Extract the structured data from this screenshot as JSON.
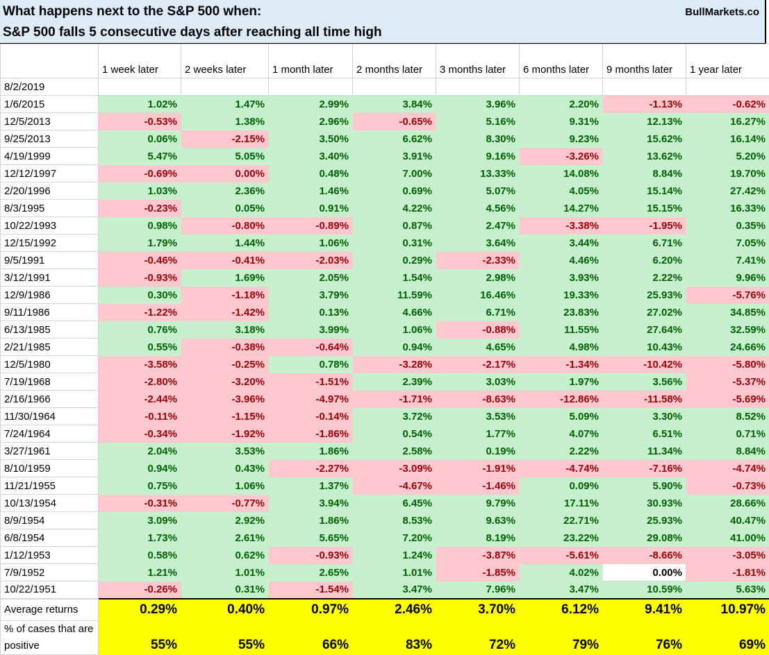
{
  "title_line1": "What happens next to the S&P 500 when:",
  "title_line2": "S&P 500 falls 5 consecutive days after reaching all time high",
  "brand": "BullMarkets.co",
  "columns": [
    "1 week later",
    "2 weeks later",
    "1 month later",
    "2 months later",
    "3 months later",
    "6 months later",
    "9 months later",
    "1 year later"
  ],
  "current_date": "8/2/2019",
  "rows": [
    {
      "date": "1/6/2015",
      "values": [
        "1.02%",
        "1.47%",
        "2.99%",
        "3.84%",
        "3.96%",
        "2.20%",
        "-1.13%",
        "-0.62%"
      ]
    },
    {
      "date": "12/5/2013",
      "values": [
        "-0.53%",
        "1.38%",
        "2.96%",
        "-0.65%",
        "5.16%",
        "9.31%",
        "12.13%",
        "16.27%"
      ]
    },
    {
      "date": "9/25/2013",
      "values": [
        "0.06%",
        "-2.15%",
        "3.50%",
        "6.62%",
        "8.30%",
        "9.23%",
        "15.62%",
        "16.14%"
      ]
    },
    {
      "date": "4/19/1999",
      "values": [
        "5.47%",
        "5.05%",
        "3.40%",
        "3.91%",
        "9.16%",
        "-3.26%",
        "13.62%",
        "5.20%"
      ]
    },
    {
      "date": "12/12/1997",
      "values": [
        "-0.69%",
        "0.00%",
        "0.48%",
        "7.00%",
        "13.33%",
        "14.08%",
        "8.84%",
        "19.70%"
      ]
    },
    {
      "date": "2/20/1996",
      "values": [
        "1.03%",
        "2.36%",
        "1.46%",
        "0.69%",
        "5.07%",
        "4.05%",
        "15.14%",
        "27.42%"
      ]
    },
    {
      "date": "8/3/1995",
      "values": [
        "-0.23%",
        "0.05%",
        "0.91%",
        "4.22%",
        "4.56%",
        "14.27%",
        "15.15%",
        "16.33%"
      ]
    },
    {
      "date": "10/22/1993",
      "values": [
        "0.98%",
        "-0.80%",
        "-0.89%",
        "0.87%",
        "2.47%",
        "-3.38%",
        "-1.95%",
        "0.35%"
      ]
    },
    {
      "date": "12/15/1992",
      "values": [
        "1.79%",
        "1.44%",
        "1.06%",
        "0.31%",
        "3.64%",
        "3.44%",
        "6.71%",
        "7.05%"
      ]
    },
    {
      "date": "9/5/1991",
      "values": [
        "-0.46%",
        "-0.41%",
        "-2.03%",
        "0.29%",
        "-2.33%",
        "4.46%",
        "6.20%",
        "7.41%"
      ]
    },
    {
      "date": "3/12/1991",
      "values": [
        "-0.93%",
        "1.69%",
        "2.05%",
        "1.54%",
        "2.98%",
        "3.93%",
        "2.22%",
        "9.96%"
      ]
    },
    {
      "date": "12/9/1986",
      "values": [
        "0.30%",
        "-1.18%",
        "3.79%",
        "11.59%",
        "16.46%",
        "19.33%",
        "25.93%",
        "-5.76%"
      ]
    },
    {
      "date": "9/11/1986",
      "values": [
        "-1.22%",
        "-1.42%",
        "0.13%",
        "4.66%",
        "6.71%",
        "23.83%",
        "27.02%",
        "34.85%"
      ]
    },
    {
      "date": "6/13/1985",
      "values": [
        "0.76%",
        "3.18%",
        "3.99%",
        "1.06%",
        "-0.88%",
        "11.55%",
        "27.64%",
        "32.59%"
      ]
    },
    {
      "date": "2/21/1985",
      "values": [
        "0.55%",
        "-0.38%",
        "-0.64%",
        "0.94%",
        "4.65%",
        "4.98%",
        "10.43%",
        "24.66%"
      ]
    },
    {
      "date": "12/5/1980",
      "values": [
        "-3.58%",
        "-0.25%",
        "0.78%",
        "-3.28%",
        "-2.17%",
        "-1.34%",
        "-10.42%",
        "-5.80%"
      ]
    },
    {
      "date": "7/19/1968",
      "values": [
        "-2.80%",
        "-3.20%",
        "-1.51%",
        "2.39%",
        "3.03%",
        "1.97%",
        "3.56%",
        "-5.37%"
      ]
    },
    {
      "date": "2/16/1966",
      "values": [
        "-2.44%",
        "-3.96%",
        "-4.97%",
        "-1.71%",
        "-8.63%",
        "-12.86%",
        "-11.58%",
        "-5.69%"
      ]
    },
    {
      "date": "11/30/1964",
      "values": [
        "-0.11%",
        "-1.15%",
        "-0.14%",
        "3.72%",
        "3.53%",
        "5.09%",
        "3.30%",
        "8.52%"
      ]
    },
    {
      "date": "7/24/1964",
      "values": [
        "-0.34%",
        "-1.92%",
        "-1.86%",
        "0.54%",
        "1.77%",
        "4.07%",
        "6.51%",
        "0.71%"
      ]
    },
    {
      "date": "3/27/1961",
      "values": [
        "2.04%",
        "3.53%",
        "1.86%",
        "2.58%",
        "0.19%",
        "2.22%",
        "11.34%",
        "8.84%"
      ]
    },
    {
      "date": "8/10/1959",
      "values": [
        "0.94%",
        "0.43%",
        "-2.27%",
        "-3.09%",
        "-1.91%",
        "-4.74%",
        "-7.16%",
        "-4.74%"
      ]
    },
    {
      "date": "11/21/1955",
      "values": [
        "0.75%",
        "1.06%",
        "1.37%",
        "-4.67%",
        "-1.46%",
        "0.09%",
        "5.90%",
        "-0.73%"
      ]
    },
    {
      "date": "10/13/1954",
      "values": [
        "-0.31%",
        "-0.77%",
        "3.94%",
        "6.45%",
        "9.79%",
        "17.11%",
        "30.93%",
        "28.66%"
      ]
    },
    {
      "date": "8/9/1954",
      "values": [
        "3.09%",
        "2.92%",
        "1.86%",
        "8.53%",
        "9.63%",
        "22.71%",
        "25.93%",
        "40.47%"
      ]
    },
    {
      "date": "6/8/1954",
      "values": [
        "1.73%",
        "2.61%",
        "5.65%",
        "7.20%",
        "8.19%",
        "23.22%",
        "29.08%",
        "41.00%"
      ]
    },
    {
      "date": "1/12/1953",
      "values": [
        "0.58%",
        "0.62%",
        "-0.93%",
        "1.24%",
        "-3.87%",
        "-5.61%",
        "-8.66%",
        "-3.05%"
      ]
    },
    {
      "date": "7/9/1952",
      "values": [
        "1.21%",
        "1.01%",
        "2.65%",
        "1.01%",
        "-1.85%",
        "4.02%",
        "0.00%",
        "-1.81%"
      ]
    },
    {
      "date": "10/22/1951",
      "values": [
        "-0.26%",
        "0.31%",
        "-1.54%",
        "3.47%",
        "7.96%",
        "3.47%",
        "10.59%",
        "5.63%"
      ]
    }
  ],
  "summary": {
    "avg_label": "Average returns",
    "avg_values": [
      "0.29%",
      "0.40%",
      "0.97%",
      "2.46%",
      "3.70%",
      "6.12%",
      "9.41%",
      "10.97%"
    ],
    "pct_label": "% of cases that are positive",
    "pct_values": [
      "55%",
      "55%",
      "66%",
      "83%",
      "72%",
      "79%",
      "76%",
      "69%"
    ]
  },
  "colors": {
    "header_bg": "#ddebf7",
    "positive_bg": "#c6efce",
    "positive_text": "#006100",
    "negative_bg": "#ffc7ce",
    "negative_text": "#9c0006",
    "highlight": "#ffff00"
  }
}
